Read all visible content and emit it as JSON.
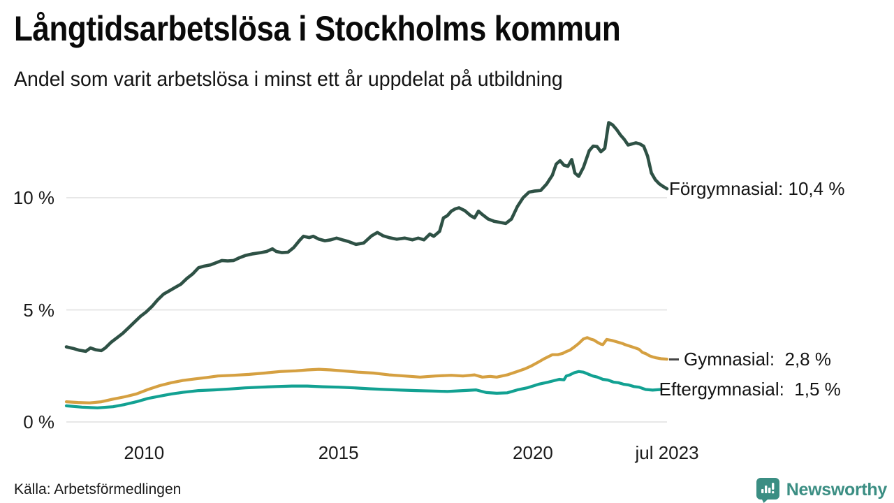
{
  "page": {
    "title": "Långtidsarbetslösa i Stockholms kommun",
    "subtitle": "Andel som varit arbetslösa i minst ett år uppdelat på utbildning",
    "source": "Källa: Arbetsförmedlingen",
    "brand": {
      "name": "Newsworthy",
      "color": "#3b8e83",
      "icon": "newsworthy-speech-bubble-bar-chart-icon"
    }
  },
  "chart_data": {
    "type": "line",
    "unit": "%",
    "title": "Långtidsarbetslösa i Stockholms kommun",
    "subtitle": "Andel som varit arbetslösa i minst ett år uppdelat på utbildning",
    "x_domain": [
      2008,
      2023.45
    ],
    "ylim": [
      0,
      14
    ],
    "grid": "horizontal",
    "legend_position": "end-of-line-labels",
    "y_ticks": [
      {
        "value": 10,
        "label": "10 %"
      },
      {
        "value": 5,
        "label": "5 %"
      },
      {
        "value": 0,
        "label": "0 %"
      }
    ],
    "x_ticks": [
      {
        "value": 2010,
        "label": "2010"
      },
      {
        "value": 2015,
        "label": "2015"
      },
      {
        "value": 2020,
        "label": "2020"
      },
      {
        "value": 2023.45,
        "label": "jul 2023"
      }
    ],
    "series": [
      {
        "name": "Förgymnasial",
        "slug": "forgymnasial",
        "color": "#2e5145",
        "end_value": "10,4 %",
        "end_label": "Förgymnasial: 10,4 %",
        "connector_dash": false,
        "points": [
          [
            2008.0,
            3.35
          ],
          [
            2008.17,
            3.28
          ],
          [
            2008.33,
            3.2
          ],
          [
            2008.5,
            3.15
          ],
          [
            2008.62,
            3.3
          ],
          [
            2008.75,
            3.22
          ],
          [
            2008.9,
            3.18
          ],
          [
            2009.0,
            3.3
          ],
          [
            2009.15,
            3.55
          ],
          [
            2009.3,
            3.75
          ],
          [
            2009.45,
            3.95
          ],
          [
            2009.6,
            4.2
          ],
          [
            2009.75,
            4.45
          ],
          [
            2009.9,
            4.7
          ],
          [
            2010.05,
            4.9
          ],
          [
            2010.2,
            5.15
          ],
          [
            2010.35,
            5.45
          ],
          [
            2010.5,
            5.7
          ],
          [
            2010.65,
            5.85
          ],
          [
            2010.8,
            6.0
          ],
          [
            2010.95,
            6.15
          ],
          [
            2011.1,
            6.4
          ],
          [
            2011.25,
            6.6
          ],
          [
            2011.4,
            6.88
          ],
          [
            2011.55,
            6.95
          ],
          [
            2011.7,
            7.0
          ],
          [
            2011.85,
            7.1
          ],
          [
            2012.0,
            7.2
          ],
          [
            2012.15,
            7.18
          ],
          [
            2012.3,
            7.2
          ],
          [
            2012.45,
            7.32
          ],
          [
            2012.6,
            7.42
          ],
          [
            2012.8,
            7.5
          ],
          [
            2013.0,
            7.55
          ],
          [
            2013.15,
            7.6
          ],
          [
            2013.3,
            7.72
          ],
          [
            2013.4,
            7.6
          ],
          [
            2013.55,
            7.55
          ],
          [
            2013.7,
            7.57
          ],
          [
            2013.85,
            7.78
          ],
          [
            2014.0,
            8.1
          ],
          [
            2014.1,
            8.28
          ],
          [
            2014.25,
            8.22
          ],
          [
            2014.35,
            8.28
          ],
          [
            2014.5,
            8.15
          ],
          [
            2014.65,
            8.08
          ],
          [
            2014.8,
            8.12
          ],
          [
            2014.95,
            8.2
          ],
          [
            2015.1,
            8.12
          ],
          [
            2015.25,
            8.05
          ],
          [
            2015.45,
            7.92
          ],
          [
            2015.65,
            7.98
          ],
          [
            2015.85,
            8.3
          ],
          [
            2016.0,
            8.45
          ],
          [
            2016.15,
            8.3
          ],
          [
            2016.3,
            8.22
          ],
          [
            2016.5,
            8.15
          ],
          [
            2016.7,
            8.2
          ],
          [
            2016.9,
            8.12
          ],
          [
            2017.05,
            8.2
          ],
          [
            2017.2,
            8.12
          ],
          [
            2017.35,
            8.38
          ],
          [
            2017.45,
            8.28
          ],
          [
            2017.6,
            8.5
          ],
          [
            2017.7,
            9.1
          ],
          [
            2017.8,
            9.2
          ],
          [
            2017.9,
            9.4
          ],
          [
            2018.0,
            9.5
          ],
          [
            2018.1,
            9.55
          ],
          [
            2018.25,
            9.42
          ],
          [
            2018.4,
            9.2
          ],
          [
            2018.5,
            9.1
          ],
          [
            2018.6,
            9.4
          ],
          [
            2018.7,
            9.25
          ],
          [
            2018.85,
            9.05
          ],
          [
            2019.0,
            8.95
          ],
          [
            2019.15,
            8.9
          ],
          [
            2019.3,
            8.85
          ],
          [
            2019.45,
            9.05
          ],
          [
            2019.6,
            9.6
          ],
          [
            2019.75,
            10.0
          ],
          [
            2019.9,
            10.25
          ],
          [
            2020.05,
            10.3
          ],
          [
            2020.2,
            10.32
          ],
          [
            2020.35,
            10.6
          ],
          [
            2020.5,
            11.0
          ],
          [
            2020.6,
            11.5
          ],
          [
            2020.7,
            11.65
          ],
          [
            2020.8,
            11.45
          ],
          [
            2020.9,
            11.4
          ],
          [
            2021.0,
            11.7
          ],
          [
            2021.08,
            11.1
          ],
          [
            2021.18,
            10.95
          ],
          [
            2021.3,
            11.35
          ],
          [
            2021.45,
            12.1
          ],
          [
            2021.55,
            12.3
          ],
          [
            2021.65,
            12.28
          ],
          [
            2021.75,
            12.05
          ],
          [
            2021.85,
            12.2
          ],
          [
            2021.95,
            13.35
          ],
          [
            2022.05,
            13.25
          ],
          [
            2022.15,
            13.05
          ],
          [
            2022.25,
            12.8
          ],
          [
            2022.35,
            12.6
          ],
          [
            2022.45,
            12.35
          ],
          [
            2022.55,
            12.4
          ],
          [
            2022.65,
            12.45
          ],
          [
            2022.75,
            12.4
          ],
          [
            2022.85,
            12.3
          ],
          [
            2022.95,
            11.85
          ],
          [
            2023.05,
            11.1
          ],
          [
            2023.15,
            10.8
          ],
          [
            2023.25,
            10.62
          ],
          [
            2023.35,
            10.5
          ],
          [
            2023.45,
            10.4
          ]
        ]
      },
      {
        "name": "Gymnasial",
        "slug": "gymnasial",
        "color": "#d5a041",
        "end_value": "2,8 %",
        "end_label": "Gymnasial:  2,8 %",
        "connector_dash": true,
        "points": [
          [
            2008.0,
            0.9
          ],
          [
            2008.3,
            0.87
          ],
          [
            2008.6,
            0.85
          ],
          [
            2008.9,
            0.9
          ],
          [
            2009.2,
            1.02
          ],
          [
            2009.5,
            1.12
          ],
          [
            2009.8,
            1.25
          ],
          [
            2010.1,
            1.45
          ],
          [
            2010.4,
            1.62
          ],
          [
            2010.7,
            1.75
          ],
          [
            2011.0,
            1.85
          ],
          [
            2011.3,
            1.92
          ],
          [
            2011.6,
            1.98
          ],
          [
            2011.9,
            2.05
          ],
          [
            2012.3,
            2.08
          ],
          [
            2012.7,
            2.12
          ],
          [
            2013.1,
            2.18
          ],
          [
            2013.5,
            2.25
          ],
          [
            2013.9,
            2.28
          ],
          [
            2014.2,
            2.32
          ],
          [
            2014.5,
            2.35
          ],
          [
            2014.8,
            2.32
          ],
          [
            2015.1,
            2.28
          ],
          [
            2015.5,
            2.22
          ],
          [
            2015.9,
            2.18
          ],
          [
            2016.3,
            2.1
          ],
          [
            2016.7,
            2.05
          ],
          [
            2017.1,
            2.0
          ],
          [
            2017.5,
            2.05
          ],
          [
            2017.9,
            2.08
          ],
          [
            2018.2,
            2.05
          ],
          [
            2018.5,
            2.1
          ],
          [
            2018.7,
            2.0
          ],
          [
            2018.9,
            2.03
          ],
          [
            2019.07,
            2.0
          ],
          [
            2019.34,
            2.1
          ],
          [
            2019.6,
            2.25
          ],
          [
            2019.8,
            2.37
          ],
          [
            2019.96,
            2.5
          ],
          [
            2020.14,
            2.67
          ],
          [
            2020.3,
            2.83
          ],
          [
            2020.5,
            3.0
          ],
          [
            2020.64,
            3.0
          ],
          [
            2020.77,
            3.06
          ],
          [
            2020.86,
            3.14
          ],
          [
            2020.95,
            3.2
          ],
          [
            2021.07,
            3.35
          ],
          [
            2021.18,
            3.5
          ],
          [
            2021.3,
            3.7
          ],
          [
            2021.4,
            3.76
          ],
          [
            2021.48,
            3.7
          ],
          [
            2021.57,
            3.65
          ],
          [
            2021.66,
            3.55
          ],
          [
            2021.75,
            3.47
          ],
          [
            2021.8,
            3.45
          ],
          [
            2021.9,
            3.68
          ],
          [
            2022.02,
            3.64
          ],
          [
            2022.1,
            3.6
          ],
          [
            2022.2,
            3.55
          ],
          [
            2022.3,
            3.5
          ],
          [
            2022.37,
            3.45
          ],
          [
            2022.46,
            3.4
          ],
          [
            2022.55,
            3.35
          ],
          [
            2022.64,
            3.3
          ],
          [
            2022.73,
            3.24
          ],
          [
            2022.82,
            3.1
          ],
          [
            2022.9,
            3.05
          ],
          [
            2023.0,
            2.95
          ],
          [
            2023.08,
            2.9
          ],
          [
            2023.17,
            2.86
          ],
          [
            2023.3,
            2.82
          ],
          [
            2023.45,
            2.8
          ]
        ]
      },
      {
        "name": "Eftergymnasial",
        "slug": "eftergymnasial",
        "color": "#12a192",
        "end_value": "1,5 %",
        "end_label": "Eftergymnasial:  1,5 %",
        "connector_dash": false,
        "points": [
          [
            2008.0,
            0.72
          ],
          [
            2008.4,
            0.66
          ],
          [
            2008.8,
            0.63
          ],
          [
            2009.2,
            0.68
          ],
          [
            2009.5,
            0.78
          ],
          [
            2009.8,
            0.9
          ],
          [
            2010.1,
            1.05
          ],
          [
            2010.4,
            1.15
          ],
          [
            2010.7,
            1.25
          ],
          [
            2011.0,
            1.32
          ],
          [
            2011.4,
            1.4
          ],
          [
            2011.8,
            1.43
          ],
          [
            2012.2,
            1.47
          ],
          [
            2012.6,
            1.52
          ],
          [
            2013.0,
            1.55
          ],
          [
            2013.4,
            1.58
          ],
          [
            2013.8,
            1.6
          ],
          [
            2014.2,
            1.6
          ],
          [
            2014.6,
            1.57
          ],
          [
            2015.0,
            1.55
          ],
          [
            2015.4,
            1.52
          ],
          [
            2015.8,
            1.48
          ],
          [
            2016.2,
            1.45
          ],
          [
            2016.6,
            1.42
          ],
          [
            2017.0,
            1.4
          ],
          [
            2017.4,
            1.38
          ],
          [
            2017.8,
            1.36
          ],
          [
            2018.2,
            1.4
          ],
          [
            2018.54,
            1.43
          ],
          [
            2018.8,
            1.31
          ],
          [
            2019.07,
            1.28
          ],
          [
            2019.34,
            1.3
          ],
          [
            2019.6,
            1.43
          ],
          [
            2019.87,
            1.53
          ],
          [
            2020.14,
            1.68
          ],
          [
            2020.4,
            1.78
          ],
          [
            2020.68,
            1.9
          ],
          [
            2020.8,
            1.88
          ],
          [
            2020.86,
            2.05
          ],
          [
            2020.95,
            2.1
          ],
          [
            2021.07,
            2.2
          ],
          [
            2021.18,
            2.25
          ],
          [
            2021.3,
            2.22
          ],
          [
            2021.4,
            2.15
          ],
          [
            2021.54,
            2.05
          ],
          [
            2021.66,
            2.0
          ],
          [
            2021.8,
            1.9
          ],
          [
            2021.93,
            1.87
          ],
          [
            2022.07,
            1.78
          ],
          [
            2022.2,
            1.75
          ],
          [
            2022.34,
            1.68
          ],
          [
            2022.46,
            1.65
          ],
          [
            2022.6,
            1.58
          ],
          [
            2022.73,
            1.55
          ],
          [
            2022.9,
            1.45
          ],
          [
            2023.08,
            1.42
          ],
          [
            2023.3,
            1.45
          ]
        ]
      }
    ]
  }
}
